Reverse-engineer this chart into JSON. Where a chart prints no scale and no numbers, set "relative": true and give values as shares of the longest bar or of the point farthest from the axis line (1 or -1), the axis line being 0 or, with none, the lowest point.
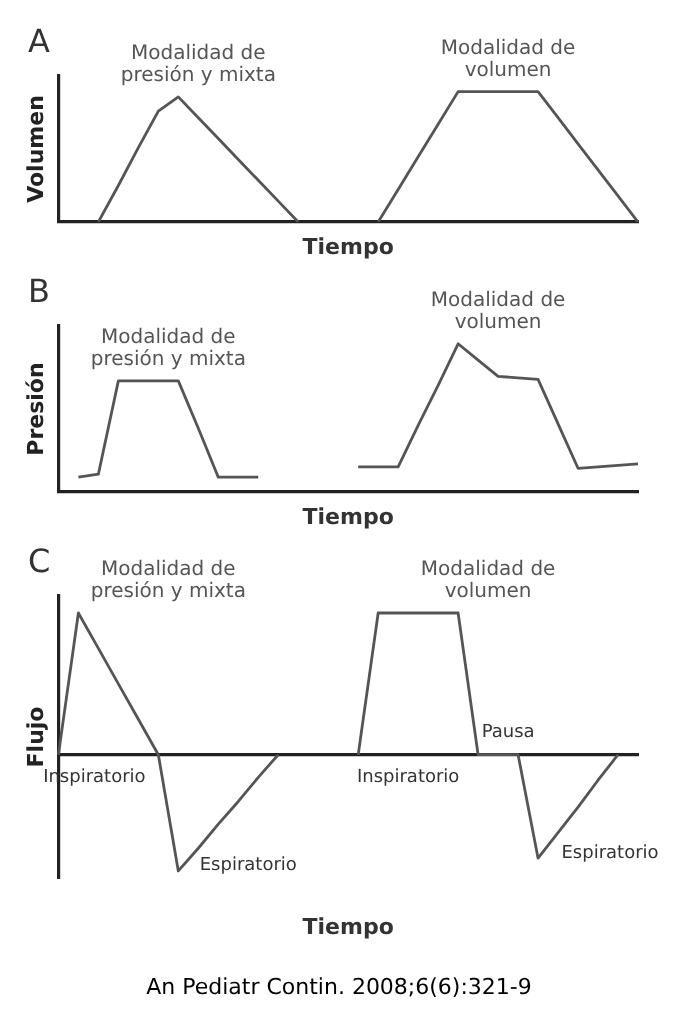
{
  "chart_data": [
    {
      "type": "line",
      "title": "A",
      "xlabel": "Tiempo",
      "ylabel": "Volumen",
      "relative": true,
      "legend": false,
      "grid": false,
      "marker": "none",
      "categories": [
        null,
        null,
        null,
        null,
        null,
        null,
        null,
        null,
        null,
        null,
        null,
        null,
        null,
        null,
        null,
        null,
        null,
        null,
        null,
        null,
        null,
        null,
        null,
        null,
        null,
        null,
        null,
        null,
        null,
        null
      ],
      "series": [
        {
          "name": "Modalidad de presión y mixta",
          "color": "#555555",
          "values": [
            null,
            null,
            0,
            0.28,
            0.57,
            0.85,
            0.96,
            0.8,
            0.64,
            0.48,
            0.32,
            0.16,
            0,
            null,
            null,
            null,
            null,
            null,
            null,
            null,
            null,
            null,
            null,
            null,
            null,
            null,
            null,
            null,
            null,
            null
          ]
        },
        {
          "name": "Modalidad de volumen",
          "color": "#555555",
          "values": [
            null,
            null,
            null,
            null,
            null,
            null,
            null,
            null,
            null,
            null,
            null,
            null,
            null,
            null,
            null,
            null,
            0,
            0.25,
            0.5,
            0.75,
            1,
            1,
            1,
            1,
            1,
            0.8,
            0.6,
            0.4,
            0.2,
            0
          ]
        }
      ]
    },
    {
      "type": "line",
      "title": "B",
      "xlabel": "Tiempo",
      "ylabel": "Presión",
      "relative": true,
      "legend": false,
      "grid": false,
      "marker": "none",
      "categories": [
        null,
        null,
        null,
        null,
        null,
        null,
        null,
        null,
        null,
        null,
        null,
        null,
        null,
        null,
        null,
        null,
        null,
        null,
        null,
        null,
        null,
        null,
        null,
        null,
        null,
        null,
        null,
        null,
        null,
        null
      ],
      "series": [
        {
          "name": "Modalidad de presión y mixta",
          "color": "#555555",
          "values": [
            null,
            0.1,
            0.12,
            0.75,
            0.75,
            0.75,
            0.75,
            0.43,
            0.1,
            0.1,
            0.1,
            null,
            null,
            null,
            null,
            null,
            null,
            null,
            null,
            null,
            null,
            null,
            null,
            null,
            null,
            null,
            null,
            null,
            null,
            null
          ]
        },
        {
          "name": "Modalidad de volumen",
          "color": "#555555",
          "values": [
            null,
            null,
            null,
            null,
            null,
            null,
            null,
            null,
            null,
            null,
            null,
            null,
            null,
            null,
            null,
            0.17,
            0.17,
            0.17,
            0.45,
            0.72,
            1,
            0.89,
            0.78,
            0.77,
            0.76,
            0.46,
            0.16,
            0.17,
            0.18,
            0.19
          ]
        }
      ]
    },
    {
      "type": "line",
      "title": "C",
      "xlabel": "Tiempo",
      "ylabel": "Flujo",
      "relative": true,
      "legend": false,
      "grid": false,
      "marker": "none",
      "categories": [
        null,
        null,
        null,
        null,
        null,
        null,
        null,
        null,
        null,
        null,
        null,
        null,
        null,
        null,
        null,
        null,
        null,
        null,
        null,
        null,
        null,
        null,
        null,
        null,
        null,
        null,
        null,
        null,
        null,
        null
      ],
      "series": [
        {
          "name": "Modalidad de presión y mixta",
          "color": "#555555",
          "values": [
            0,
            1,
            0.75,
            0.5,
            0.25,
            0,
            -0.82,
            -0.66,
            -0.49,
            -0.33,
            -0.16,
            0,
            null,
            null,
            null,
            null,
            null,
            null,
            null,
            null,
            null,
            null,
            null,
            null,
            null,
            null,
            null,
            null,
            null,
            null
          ]
        },
        {
          "name": "Modalidad de volumen",
          "color": "#555555",
          "values": [
            null,
            null,
            null,
            null,
            null,
            null,
            null,
            null,
            null,
            null,
            null,
            null,
            null,
            null,
            null,
            0,
            1,
            1,
            1,
            1,
            1,
            0,
            0,
            0,
            -0.73,
            -0.55,
            -0.37,
            -0.18,
            0,
            null
          ]
        }
      ],
      "annotations": [
        "Inspiratorio",
        "Espiratorio",
        "Inspiratorio",
        "Pausa",
        "Espiratorio",
        "An Pediatr Contin. 2008;6(6):321-9"
      ]
    }
  ]
}
